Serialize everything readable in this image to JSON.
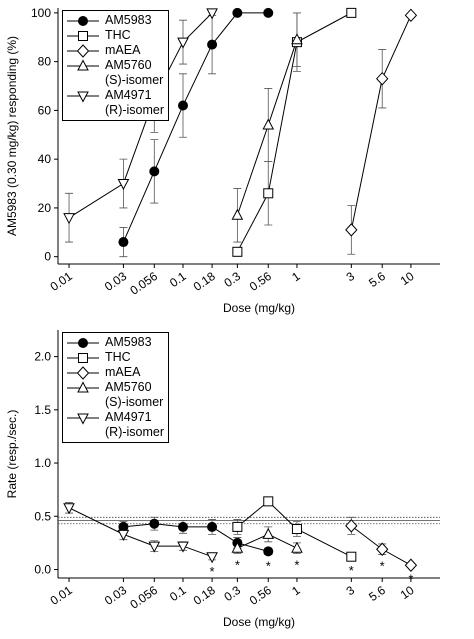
{
  "chart_data": [
    {
      "type": "line",
      "xscale": "log",
      "x_label": "Dose (mg/kg)",
      "y_label": "AM5983 (0.30 mg/kg) responding (%)",
      "xlim": [
        0.008,
        18
      ],
      "xticks": [
        0.01,
        0.03,
        0.056,
        0.1,
        0.18,
        0.3,
        0.56,
        1,
        3,
        5.6,
        10
      ],
      "ylim": [
        -3,
        102
      ],
      "yticks": [
        0,
        20,
        40,
        60,
        80,
        100
      ],
      "legend": "top-left",
      "series": [
        {
          "name": "AM5983",
          "color": "#000000",
          "marker": "circle-filled",
          "x": [
            0.03,
            0.056,
            0.1,
            0.18,
            0.3,
            0.56
          ],
          "values": [
            6,
            35,
            62,
            87,
            100,
            100
          ],
          "errors": [
            6,
            13,
            13,
            12,
            null,
            null
          ]
        },
        {
          "name": "THC",
          "color": "#000000",
          "marker": "square",
          "x": [
            0.3,
            0.56,
            1,
            3
          ],
          "values": [
            2,
            26,
            88,
            100
          ],
          "errors": [
            null,
            13,
            12,
            null
          ]
        },
        {
          "name": "mAEA",
          "color": "#000000",
          "marker": "diamond",
          "x": [
            3,
            5.6,
            10
          ],
          "values": [
            11,
            73,
            99
          ],
          "errors": [
            10,
            12,
            null
          ]
        },
        {
          "name": "AM5760\n(S)-isomer",
          "color": "#000000",
          "marker": "triangle-up",
          "x": [
            0.3,
            0.56,
            1
          ],
          "values": [
            17,
            54,
            89
          ],
          "errors": [
            11,
            15,
            11
          ]
        },
        {
          "name": "AM4971\n(R)-isomer",
          "color": "#000000",
          "marker": "triangle-down",
          "x": [
            0.01,
            0.03,
            0.056,
            0.1,
            0.18
          ],
          "values": [
            16,
            30,
            65,
            88,
            100
          ],
          "errors": [
            10,
            10,
            14,
            9,
            null
          ]
        }
      ]
    },
    {
      "type": "line",
      "xscale": "log",
      "x_label": "Dose (mg/kg)",
      "y_label": "Rate (resp./sec.)",
      "xlim": [
        0.008,
        18
      ],
      "xticks": [
        0.01,
        0.03,
        0.056,
        0.1,
        0.18,
        0.3,
        0.56,
        1,
        3,
        5.6,
        10
      ],
      "ylim": [
        -0.08,
        2.25
      ],
      "yticks": [
        {
          "value": 0,
          "label": "0.0"
        },
        {
          "value": 0.5,
          "label": "0.5"
        },
        {
          "value": 1,
          "label": "1.0"
        },
        {
          "value": 1.5,
          "label": "1.5"
        },
        {
          "value": 2,
          "label": "2.0"
        }
      ],
      "legend": "top-left",
      "hlines": [
        {
          "value": 0.49,
          "style": "dotted"
        },
        {
          "value": 0.46,
          "style": "solid"
        },
        {
          "value": 0.43,
          "style": "dotted"
        }
      ],
      "series": [
        {
          "name": "AM5983",
          "color": "#000000",
          "marker": "circle-filled",
          "x": [
            0.03,
            0.056,
            0.1,
            0.18,
            0.3,
            0.56
          ],
          "values": [
            0.4,
            0.43,
            0.4,
            0.4,
            0.25,
            0.17
          ],
          "errors": [
            0.05,
            0.06,
            0.06,
            0.07,
            0.05,
            0.03
          ]
        },
        {
          "name": "THC",
          "color": "#000000",
          "marker": "square",
          "x": [
            0.3,
            0.56,
            1,
            3
          ],
          "values": [
            0.4,
            0.64,
            0.38,
            0.12
          ],
          "errors": [
            0.07,
            0.04,
            0.07,
            0.02
          ]
        },
        {
          "name": "mAEA",
          "color": "#000000",
          "marker": "diamond",
          "x": [
            3,
            5.6,
            10
          ],
          "values": [
            0.41,
            0.19,
            0.04
          ],
          "errors": [
            0.08,
            0.05,
            0.02
          ]
        },
        {
          "name": "AM5760\n(S)-isomer",
          "color": "#000000",
          "marker": "triangle-up",
          "x": [
            0.3,
            0.56,
            1
          ],
          "values": [
            0.2,
            0.33,
            0.2
          ],
          "errors": [
            0.05,
            0.07,
            0.05
          ]
        },
        {
          "name": "AM4971\n(R)-isomer",
          "color": "#000000",
          "marker": "triangle-down",
          "x": [
            0.01,
            0.03,
            0.056,
            0.1,
            0.18
          ],
          "values": [
            0.58,
            0.33,
            0.22,
            0.22,
            0.12
          ],
          "errors": [
            0.05,
            0.05,
            0.05,
            0.04,
            0.03
          ]
        }
      ],
      "annotations": [
        {
          "x": 0.18,
          "text": "*"
        },
        {
          "x": 0.3,
          "text": "*"
        },
        {
          "x": 0.56,
          "text": "*"
        },
        {
          "x": 1,
          "text": "*"
        },
        {
          "x": 3,
          "text": "*"
        },
        {
          "x": 5.6,
          "text": "*"
        },
        {
          "x": 10,
          "text": "*"
        }
      ]
    }
  ]
}
